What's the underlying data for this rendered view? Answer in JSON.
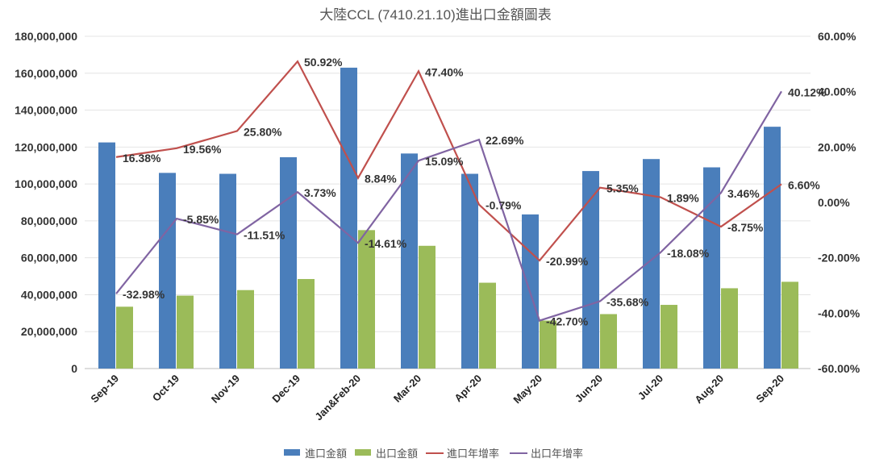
{
  "chart_data": {
    "type": "bar+line",
    "title": "大陸CCL (7410.21.10)進出口金額圖表",
    "categories": [
      "Sep-19",
      "Oct-19",
      "Nov-19",
      "Dec-19",
      "Jan&Feb-20",
      "Mar-20",
      "Apr-20",
      "May-20",
      "Jun-20",
      "Jul-20",
      "Aug-20",
      "Sep-20"
    ],
    "left_axis": {
      "ylim": [
        0,
        180000000
      ],
      "ticks": [
        "0",
        "20,000,000",
        "40,000,000",
        "60,000,000",
        "80,000,000",
        "100,000,000",
        "120,000,000",
        "140,000,000",
        "160,000,000",
        "180,000,000"
      ]
    },
    "right_axis": {
      "ylim": [
        -60,
        60
      ],
      "ticks": [
        "-60.00%",
        "-40.00%",
        "-20.00%",
        "0.00%",
        "20.00%",
        "40.00%",
        "60.00%"
      ]
    },
    "grid": true,
    "legend_position": "bottom",
    "series": [
      {
        "name": "進口金額",
        "type": "bar",
        "axis": "left",
        "color": "#4a7ebb",
        "values": [
          122500000,
          106000000,
          105500000,
          114500000,
          163000000,
          116500000,
          105500000,
          83500000,
          107000000,
          113500000,
          109000000,
          131000000
        ]
      },
      {
        "name": "出口金額",
        "type": "bar",
        "axis": "left",
        "color": "#9bbb59",
        "values": [
          33500000,
          39500000,
          42500000,
          48500000,
          75000000,
          66500000,
          46500000,
          26000000,
          29500000,
          34500000,
          43500000,
          47000000
        ]
      },
      {
        "name": "進口年增率",
        "type": "line",
        "axis": "right",
        "color": "#c0504d",
        "values": [
          16.38,
          19.56,
          25.8,
          50.92,
          8.84,
          47.4,
          -0.79,
          -20.99,
          5.35,
          1.89,
          -8.75,
          6.6
        ],
        "labels": [
          "16.38%",
          "19.56%",
          "25.80%",
          "50.92%",
          "8.84%",
          "47.40%",
          "-0.79%",
          "-20.99%",
          "5.35%",
          "1.89%",
          "-8.75%",
          "6.60%"
        ]
      },
      {
        "name": "出口年增率",
        "type": "line",
        "axis": "right",
        "color": "#8064a2",
        "values": [
          -32.98,
          -5.85,
          -11.51,
          3.73,
          -14.61,
          15.09,
          22.69,
          -42.7,
          -35.68,
          -18.08,
          3.46,
          40.12
        ],
        "labels": [
          "-32.98%",
          "-5.85%",
          "-11.51%",
          "3.73%",
          "-14.61%",
          "15.09%",
          "22.69%",
          "-42.70%",
          "-35.68%",
          "-18.08%",
          "3.46%",
          "40.12%"
        ]
      }
    ]
  }
}
